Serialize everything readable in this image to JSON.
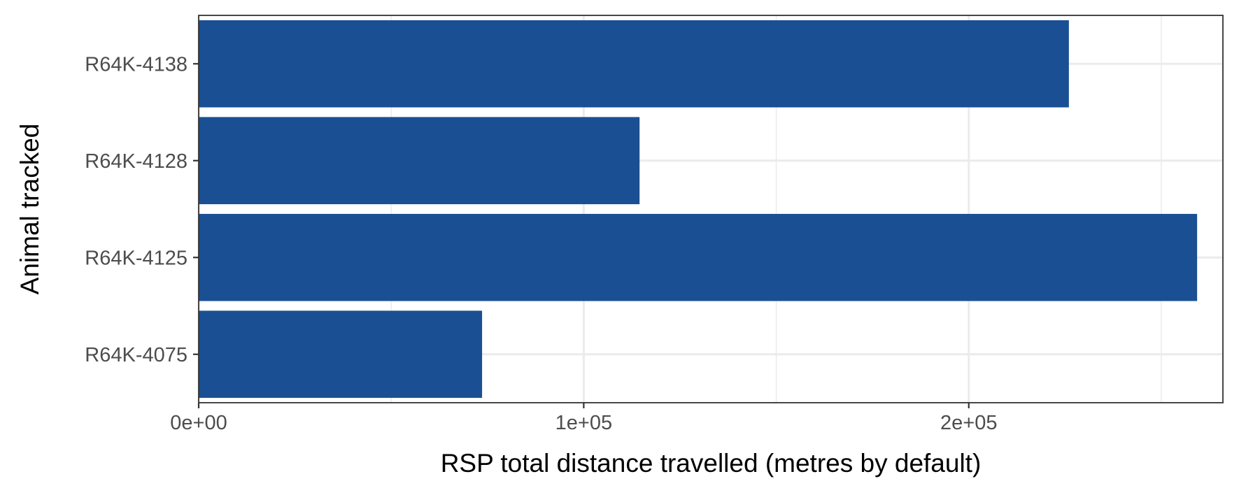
{
  "chart_data": {
    "type": "bar",
    "orientation": "horizontal",
    "categories": [
      "R64K-4138",
      "R64K-4128",
      "R64K-4125",
      "R64K-4075"
    ],
    "values": [
      226000,
      114500,
      259300,
      73600
    ],
    "xlabel": "RSP total distance travelled (metres by default)",
    "ylabel": "Animal tracked",
    "xlim": [
      0,
      266000
    ],
    "xticks": [
      {
        "value": 0,
        "label": "0e+00"
      },
      {
        "value": 100000,
        "label": "1e+05"
      },
      {
        "value": 200000,
        "label": "2e+05"
      }
    ],
    "x_minor_gridlines": [
      50000,
      150000,
      250000
    ],
    "grid": true,
    "legend": "none",
    "bar_color": "#1a4f93"
  }
}
